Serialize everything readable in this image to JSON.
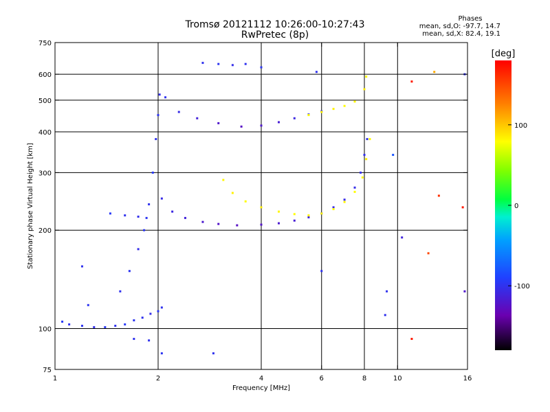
{
  "header": {
    "title_line1": "Tromsø 20121112 10:26:00-10:27:43",
    "title_line2": "RwPretec (8p)"
  },
  "phase_box": {
    "heading": "Phases",
    "line_o": "mean, sd,O: -97.7, 14.7",
    "line_x": "mean, sd,X: 82.4, 19.1"
  },
  "colorbar": {
    "unit_label": "[deg]",
    "range": [
      -180,
      180
    ],
    "ticks": [
      {
        "value": 100,
        "label": "100"
      },
      {
        "value": 0,
        "label": "0"
      },
      {
        "value": -100,
        "label": "-100"
      }
    ]
  },
  "chart_data": {
    "type": "scatter",
    "title": "Tromsø 20121112 10:26:00-10:27:43",
    "subtitle": "RwPretec (8p)",
    "xlabel": "Frequency [MHz]",
    "ylabel": "Stationary phase Virtual Height [km]",
    "x_scale": "log",
    "y_scale": "log",
    "xlim": [
      1,
      16
    ],
    "ylim": [
      75,
      750
    ],
    "grid": true,
    "x_ticks": [
      {
        "value": 1,
        "label": "1"
      },
      {
        "value": 2,
        "label": "2"
      },
      {
        "value": 4,
        "label": "4"
      },
      {
        "value": 6,
        "label": "6"
      },
      {
        "value": 8,
        "label": "8"
      },
      {
        "value": 10,
        "label": "10"
      },
      {
        "value": 16,
        "label": "16"
      }
    ],
    "y_ticks": [
      {
        "value": 75,
        "label": "75"
      },
      {
        "value": 100,
        "label": "100"
      },
      {
        "value": 200,
        "label": "200"
      },
      {
        "value": 300,
        "label": "300"
      },
      {
        "value": 400,
        "label": "400"
      },
      {
        "value": 500,
        "label": "500"
      },
      {
        "value": 600,
        "label": "600"
      },
      {
        "value": 750,
        "label": "750"
      }
    ],
    "x_gridlines": [
      2,
      4,
      6,
      8,
      10
    ],
    "y_gridlines": [
      100,
      200,
      300,
      400,
      500,
      600
    ],
    "color_quantity": "phase [deg]",
    "series": [
      {
        "values": [
          [
            1.05,
            105,
            -95
          ],
          [
            1.1,
            103,
            -100
          ],
          [
            1.2,
            102,
            -98
          ],
          [
            1.3,
            101,
            -102
          ],
          [
            1.4,
            101,
            -96
          ],
          [
            1.5,
            102,
            -100
          ],
          [
            1.6,
            103,
            -95
          ],
          [
            1.7,
            106,
            -98
          ],
          [
            1.8,
            108,
            -100
          ],
          [
            1.9,
            111,
            -103
          ],
          [
            2.0,
            113,
            -97
          ],
          [
            2.05,
            116,
            -100
          ]
        ]
      },
      {
        "values": [
          [
            1.45,
            225,
            -95
          ],
          [
            1.6,
            222,
            -100
          ],
          [
            1.75,
            220,
            -102
          ],
          [
            1.85,
            218,
            -98
          ]
        ]
      },
      {
        "values": [
          [
            1.55,
            130,
            -100
          ],
          [
            1.65,
            150,
            -98
          ],
          [
            1.75,
            175,
            -103
          ],
          [
            1.82,
            200,
            -97
          ],
          [
            1.88,
            240,
            -100
          ],
          [
            1.93,
            300,
            -95
          ],
          [
            1.97,
            380,
            -100
          ],
          [
            2.0,
            450,
            -98
          ],
          [
            2.02,
            520,
            -102
          ]
        ]
      },
      {
        "values": [
          [
            2.05,
            250,
            -105
          ],
          [
            2.2,
            228,
            -108
          ],
          [
            2.4,
            218,
            -112
          ],
          [
            2.7,
            212,
            -118
          ],
          [
            3.0,
            209,
            -122
          ],
          [
            3.4,
            207,
            -125
          ],
          [
            4.0,
            208,
            -122
          ],
          [
            4.5,
            210,
            -118
          ],
          [
            5.0,
            214,
            -115
          ],
          [
            5.5,
            219,
            -110
          ],
          [
            6.0,
            225,
            -108
          ],
          [
            6.5,
            235,
            -106
          ],
          [
            7.0,
            248,
            -105
          ],
          [
            7.5,
            270,
            -104
          ],
          [
            7.8,
            300,
            -103
          ],
          [
            8.0,
            340,
            -102
          ],
          [
            8.15,
            380,
            -100
          ]
        ]
      },
      {
        "values": [
          [
            3.1,
            285,
            82
          ],
          [
            3.3,
            260,
            84
          ],
          [
            3.6,
            245,
            80
          ],
          [
            4.0,
            235,
            85
          ],
          [
            4.5,
            228,
            82
          ],
          [
            5.0,
            224,
            80
          ],
          [
            5.5,
            222,
            84
          ],
          [
            6.0,
            225,
            82
          ],
          [
            6.5,
            232,
            80
          ],
          [
            7.0,
            244,
            83
          ],
          [
            7.5,
            262,
            80
          ],
          [
            7.9,
            290,
            82
          ],
          [
            8.1,
            330,
            84
          ],
          [
            8.3,
            380,
            80
          ]
        ]
      },
      {
        "values": [
          [
            2.1,
            510,
            -100
          ],
          [
            2.3,
            460,
            -105
          ],
          [
            2.6,
            440,
            -112
          ],
          [
            3.0,
            425,
            -120
          ],
          [
            3.5,
            415,
            -125
          ],
          [
            4.0,
            418,
            -120
          ],
          [
            4.5,
            428,
            -115
          ],
          [
            5.0,
            440,
            -108
          ],
          [
            5.5,
            452,
            -102
          ],
          [
            6.0,
            462,
            -100
          ]
        ]
      },
      {
        "values": [
          [
            5.5,
            450,
            80
          ],
          [
            6.0,
            460,
            82
          ],
          [
            6.5,
            470,
            84
          ],
          [
            7.0,
            480,
            80
          ],
          [
            7.5,
            495,
            82
          ],
          [
            8.0,
            540,
            85
          ],
          [
            8.1,
            590,
            80
          ]
        ]
      },
      {
        "values": [
          [
            2.7,
            650,
            -100
          ],
          [
            3.0,
            645,
            -98
          ],
          [
            3.3,
            640,
            -103
          ],
          [
            3.6,
            645,
            -100
          ],
          [
            4.0,
            630,
            -97
          ],
          [
            5.8,
            610,
            -100
          ]
        ]
      },
      {
        "values": [
          [
            1.2,
            155,
            -100
          ],
          [
            1.25,
            118,
            -98
          ],
          [
            1.7,
            93,
            -100
          ],
          [
            1.88,
            92,
            -100
          ],
          [
            2.05,
            84,
            -98
          ],
          [
            2.9,
            84,
            -100
          ],
          [
            6.0,
            150,
            -100
          ],
          [
            9.2,
            110,
            -100
          ],
          [
            9.3,
            130,
            -100
          ],
          [
            9.7,
            340,
            -80
          ],
          [
            10.3,
            190,
            -110
          ],
          [
            11.0,
            570,
            170
          ],
          [
            11.0,
            93,
            170
          ],
          [
            12.3,
            170,
            150
          ],
          [
            12.8,
            610,
            110
          ],
          [
            13.2,
            255,
            160
          ],
          [
            15.5,
            235,
            170
          ],
          [
            15.7,
            600,
            -100
          ],
          [
            15.7,
            130,
            -120
          ]
        ]
      }
    ]
  }
}
